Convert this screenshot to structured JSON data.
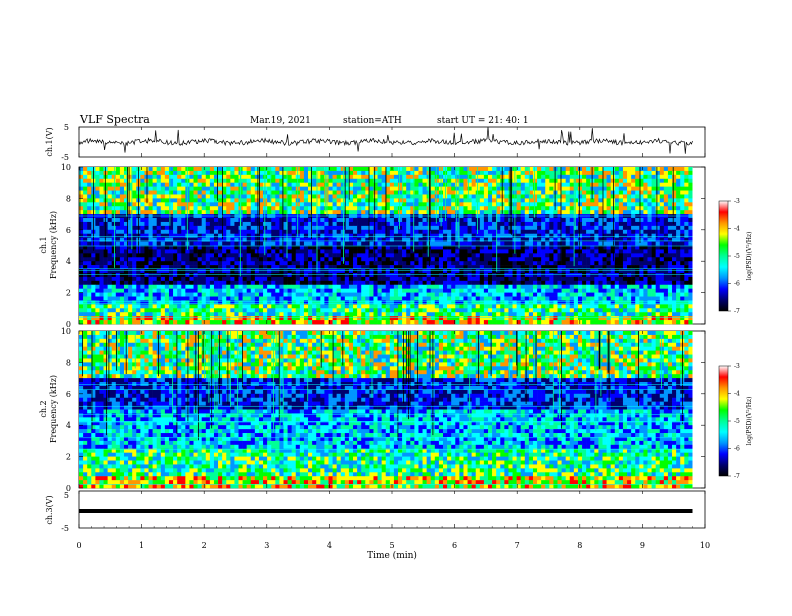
{
  "header": {
    "title": "VLF  Spectra",
    "date": "Mar.19, 2021",
    "station": "station=ATH",
    "start_ut": "start  UT  =    21: 40: 1"
  },
  "chart_data": [
    {
      "type": "line",
      "name": "channel-1-waveform",
      "ylabel": "ch.1(V)",
      "y_ticks": [
        "5",
        "-5"
      ],
      "ylim": [
        -5,
        5
      ],
      "baseline": 0,
      "note_values": "noisy waveform near 0 V with occasional short spikes"
    },
    {
      "type": "heatmap",
      "name": "channel-1-spectrogram",
      "ylabel": "ch.1\nFrequency  (kHz)",
      "ylabel_line1": "ch.1",
      "ylabel_line2": "Frequency  (kHz)",
      "y_ticks": [
        "0",
        "2",
        "4",
        "6",
        "8",
        "10"
      ],
      "ylim": [
        0,
        10
      ],
      "xlim": [
        0,
        9.8
      ],
      "colorbar": {
        "label": "log(PSD)(V²/Hz)",
        "ticks": [
          "-3",
          "-4",
          "-5",
          "-6",
          "-7"
        ],
        "range": [
          -7,
          -3
        ]
      },
      "bands": [
        {
          "f0": 0,
          "f1": 0.4,
          "level": "high"
        },
        {
          "f0": 0.4,
          "f1": 1.2,
          "level": "mid-high"
        },
        {
          "f0": 1.2,
          "f1": 2.6,
          "level": "mid"
        },
        {
          "f0": 2.6,
          "f1": 5.0,
          "level": "very-low"
        },
        {
          "f0": 5.0,
          "f1": 7.0,
          "level": "low"
        },
        {
          "f0": 7.0,
          "f1": 10.0,
          "level": "mid-high-bursty"
        }
      ]
    },
    {
      "type": "heatmap",
      "name": "channel-2-spectrogram",
      "ylabel_line1": "ch.2",
      "ylabel_line2": "Frequency  (kHz)",
      "y_ticks": [
        "0",
        "2",
        "4",
        "6",
        "8",
        "10"
      ],
      "ylim": [
        0,
        10
      ],
      "xlim": [
        0,
        9.8
      ],
      "colorbar": {
        "label": "log(PSD)(V²/Hz)",
        "ticks": [
          "-3",
          "-4",
          "-5",
          "-6",
          "-7"
        ],
        "range": [
          -7,
          -3
        ]
      },
      "bands": [
        {
          "f0": 0,
          "f1": 0.8,
          "level": "high"
        },
        {
          "f0": 0.8,
          "f1": 2.6,
          "level": "mid-high"
        },
        {
          "f0": 2.6,
          "f1": 5.0,
          "level": "mid"
        },
        {
          "f0": 5.0,
          "f1": 7.0,
          "level": "low"
        },
        {
          "f0": 7.0,
          "f1": 10.0,
          "level": "mid-high-bursty"
        }
      ]
    },
    {
      "type": "line",
      "name": "channel-3-waveform",
      "ylabel": "ch.3(V)",
      "y_ticks": [
        "5",
        "-5"
      ],
      "ylim": [
        -5,
        5
      ],
      "baseline": -1.5
    }
  ],
  "x_axis": {
    "label": "Time  (min)",
    "ticks": [
      "0",
      "1",
      "2",
      "3",
      "4",
      "5",
      "6",
      "7",
      "8",
      "9",
      "10"
    ],
    "range": [
      0,
      10
    ]
  },
  "colors": {
    "colormap": [
      "#000000",
      "#00006e",
      "#0000ff",
      "#0096ff",
      "#00ffff",
      "#00ff96",
      "#00ff00",
      "#ffff00",
      "#ff9600",
      "#ff0000",
      "#ffffff"
    ]
  }
}
